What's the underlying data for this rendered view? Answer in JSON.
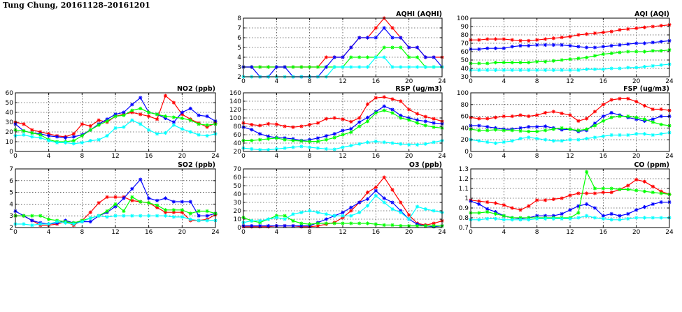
{
  "page": {
    "title": "Tung Chung, 20161128–20161201"
  },
  "colors": {
    "red": "#ff0000",
    "blue": "#0000ff",
    "green": "#00ff00",
    "cyan": "#00ffff"
  },
  "chart_data": [
    {
      "id": "aqhi",
      "type": "line",
      "title": "AQHI (AQHI)",
      "xlim": [
        0,
        24
      ],
      "xticks": [
        0,
        4,
        8,
        12,
        16,
        20,
        24
      ],
      "ylim": [
        2,
        8
      ],
      "yticks": [
        2,
        3,
        4,
        5,
        6,
        7,
        8
      ],
      "grid": true,
      "series": [
        {
          "color": "red",
          "values": [
            3,
            3,
            3,
            3,
            3,
            3,
            3,
            3,
            3,
            3,
            4,
            4,
            4,
            5,
            6,
            6,
            7,
            8,
            7,
            6,
            5,
            5,
            4,
            4,
            4
          ]
        },
        {
          "color": "green",
          "values": [
            3,
            3,
            3,
            3,
            3,
            3,
            3,
            3,
            3,
            3,
            3,
            3,
            3,
            4,
            4,
            4,
            4,
            5,
            5,
            5,
            4,
            4,
            3,
            3,
            3
          ]
        },
        {
          "color": "blue",
          "values": [
            3,
            3,
            2,
            2,
            3,
            3,
            2,
            2,
            2,
            2,
            3,
            4,
            4,
            5,
            6,
            6,
            6,
            7,
            6,
            6,
            5,
            5,
            4,
            4,
            3
          ]
        },
        {
          "color": "cyan",
          "values": [
            2,
            2,
            2,
            2,
            2,
            2,
            2,
            2,
            2,
            2,
            2,
            3,
            3,
            3,
            3,
            3,
            4,
            4,
            3,
            3,
            3,
            3,
            3,
            3,
            3
          ]
        }
      ]
    },
    {
      "id": "aqi",
      "type": "line",
      "title": "AQI (AQI)",
      "xlim": [
        0,
        24
      ],
      "xticks": [
        0,
        4,
        8,
        12,
        16,
        20,
        24
      ],
      "ylim": [
        30,
        100
      ],
      "yticks": [
        30,
        40,
        50,
        60,
        70,
        80,
        90,
        100
      ],
      "grid": true,
      "series": [
        {
          "color": "red",
          "values": [
            74,
            74,
            75,
            75,
            75,
            74,
            73,
            73,
            74,
            75,
            76,
            77,
            78,
            80,
            81,
            82,
            83,
            84,
            86,
            87,
            88,
            89,
            90,
            91,
            92
          ]
        },
        {
          "color": "blue",
          "values": [
            63,
            63,
            64,
            64,
            64,
            66,
            67,
            67,
            68,
            68,
            68,
            68,
            67,
            66,
            65,
            65,
            66,
            67,
            68,
            69,
            70,
            70,
            71,
            72,
            73
          ]
        },
        {
          "color": "green",
          "values": [
            46,
            46,
            46,
            47,
            47,
            47,
            47,
            47,
            48,
            48,
            49,
            50,
            51,
            52,
            53,
            55,
            57,
            58,
            59,
            60,
            60,
            60,
            61,
            61,
            62
          ]
        },
        {
          "color": "cyan",
          "values": [
            38,
            38,
            38,
            38,
            38,
            38,
            38,
            38,
            38,
            38,
            38,
            38,
            38,
            38,
            39,
            39,
            39,
            40,
            40,
            41,
            41,
            42,
            43,
            44,
            45
          ]
        }
      ]
    },
    {
      "id": "no2",
      "type": "line",
      "title": "NO2 (ppb)",
      "xlim": [
        0,
        24
      ],
      "xticks": [
        0,
        4,
        8,
        12,
        16,
        20,
        24
      ],
      "ylim": [
        0,
        60
      ],
      "yticks": [
        0,
        10,
        20,
        30,
        40,
        50,
        60
      ],
      "grid": true,
      "series": [
        {
          "color": "red",
          "values": [
            30,
            28,
            22,
            20,
            18,
            16,
            15,
            18,
            28,
            26,
            32,
            30,
            36,
            38,
            40,
            38,
            36,
            33,
            57,
            50,
            38,
            33,
            29,
            25,
            29
          ]
        },
        {
          "color": "blue",
          "values": [
            28,
            21,
            19,
            18,
            16,
            15,
            14,
            15,
            17,
            22,
            28,
            33,
            38,
            40,
            48,
            55,
            40,
            38,
            34,
            30,
            40,
            44,
            37,
            36,
            31
          ]
        },
        {
          "color": "green",
          "values": [
            22,
            21,
            19,
            17,
            12,
            10,
            10,
            11,
            16,
            22,
            27,
            31,
            36,
            37,
            42,
            44,
            40,
            38,
            36,
            35,
            34,
            32,
            28,
            27,
            28
          ]
        },
        {
          "color": "cyan",
          "values": [
            16,
            17,
            15,
            14,
            11,
            9,
            9,
            8,
            9,
            11,
            12,
            16,
            24,
            25,
            32,
            28,
            22,
            18,
            19,
            27,
            23,
            20,
            17,
            16,
            18
          ]
        }
      ]
    },
    {
      "id": "rsp",
      "type": "line",
      "title": "RSP (ug/m3)",
      "xlim": [
        0,
        24
      ],
      "xticks": [
        0,
        4,
        8,
        12,
        16,
        20,
        24
      ],
      "ylim": [
        20,
        160
      ],
      "yticks": [
        20,
        40,
        60,
        80,
        100,
        120,
        140,
        160
      ],
      "grid": true,
      "series": [
        {
          "color": "red",
          "values": [
            88,
            84,
            82,
            86,
            85,
            80,
            78,
            80,
            84,
            88,
            98,
            100,
            97,
            91,
            100,
            133,
            148,
            150,
            145,
            140,
            120,
            110,
            103,
            98,
            92
          ]
        },
        {
          "color": "blue",
          "values": [
            78,
            72,
            62,
            56,
            53,
            52,
            50,
            46,
            48,
            52,
            57,
            62,
            70,
            74,
            90,
            101,
            115,
            128,
            120,
            106,
            100,
            95,
            92,
            88,
            86
          ]
        },
        {
          "color": "green",
          "values": [
            46,
            46,
            48,
            50,
            52,
            48,
            46,
            45,
            44,
            44,
            48,
            53,
            60,
            66,
            80,
            92,
            112,
            118,
            112,
            100,
            95,
            88,
            82,
            78,
            76
          ]
        },
        {
          "color": "cyan",
          "values": [
            28,
            26,
            24,
            24,
            26,
            28,
            30,
            32,
            30,
            28,
            26,
            25,
            30,
            34,
            38,
            42,
            44,
            42,
            40,
            38,
            36,
            36,
            38,
            42,
            46
          ]
        }
      ]
    },
    {
      "id": "fsp",
      "type": "line",
      "title": "FSP (ug/m3)",
      "xlim": [
        0,
        24
      ],
      "xticks": [
        0,
        4,
        8,
        12,
        16,
        20,
        24
      ],
      "ylim": [
        0,
        100
      ],
      "yticks": [
        0,
        20,
        40,
        60,
        80,
        100
      ],
      "grid": true,
      "series": [
        {
          "color": "red",
          "values": [
            58,
            56,
            56,
            58,
            60,
            60,
            62,
            60,
            62,
            66,
            68,
            65,
            62,
            52,
            56,
            68,
            80,
            88,
            90,
            90,
            85,
            78,
            72,
            72,
            70
          ]
        },
        {
          "color": "blue",
          "values": [
            44,
            44,
            42,
            40,
            38,
            38,
            40,
            42,
            42,
            43,
            40,
            37,
            38,
            34,
            36,
            48,
            60,
            66,
            62,
            58,
            55,
            52,
            55,
            60,
            60
          ]
        },
        {
          "color": "green",
          "values": [
            38,
            36,
            36,
            37,
            36,
            36,
            35,
            34,
            34,
            36,
            38,
            40,
            38,
            36,
            38,
            44,
            52,
            58,
            60,
            60,
            58,
            55,
            50,
            46,
            44
          ]
        },
        {
          "color": "cyan",
          "values": [
            20,
            18,
            16,
            14,
            16,
            18,
            22,
            24,
            22,
            20,
            18,
            18,
            20,
            20,
            22,
            24,
            26,
            28,
            28,
            28,
            30,
            30,
            28,
            30,
            32
          ]
        }
      ]
    },
    {
      "id": "so2",
      "type": "line",
      "title": "SO2 (ppb)",
      "xlim": [
        0,
        24
      ],
      "xticks": [
        0,
        4,
        8,
        12,
        16,
        20,
        24
      ],
      "ylim": [
        2,
        7
      ],
      "yticks": [
        2,
        3,
        4,
        5,
        6,
        7
      ],
      "grid": true,
      "series": [
        {
          "color": "red",
          "values": [
            3.0,
            3.0,
            2.6,
            2.2,
            2.2,
            2.3,
            2.5,
            2.2,
            2.6,
            3.3,
            4.1,
            4.6,
            4.6,
            4.6,
            4.3,
            4.2,
            4.1,
            3.7,
            3.3,
            3.3,
            3.3,
            2.6,
            2.6,
            2.7,
            3.1
          ]
        },
        {
          "color": "blue",
          "values": [
            3.4,
            3.0,
            2.6,
            2.4,
            2.3,
            2.4,
            2.6,
            2.4,
            2.5,
            2.5,
            3.0,
            3.3,
            3.8,
            4.5,
            5.3,
            6.1,
            4.5,
            4.3,
            4.5,
            4.2,
            4.2,
            4.2,
            3.0,
            3.0,
            3.2
          ]
        },
        {
          "color": "green",
          "values": [
            3.0,
            3.0,
            3.0,
            3.0,
            2.7,
            2.6,
            2.5,
            2.4,
            2.6,
            2.8,
            3.0,
            3.4,
            4.0,
            3.4,
            4.6,
            4.2,
            4.1,
            3.9,
            3.5,
            3.5,
            3.5,
            3.2,
            3.4,
            3.4,
            3.2
          ]
        },
        {
          "color": "cyan",
          "values": [
            2.3,
            2.3,
            2.2,
            2.3,
            2.3,
            2.5,
            2.4,
            2.3,
            2.5,
            2.8,
            3.0,
            2.9,
            3.0,
            3.0,
            3.0,
            3.0,
            3.0,
            3.0,
            3.0,
            2.9,
            2.9,
            2.7,
            2.6,
            2.6,
            2.6
          ]
        }
      ]
    },
    {
      "id": "o3",
      "type": "line",
      "title": "O3 (ppb)",
      "xlim": [
        0,
        24
      ],
      "xticks": [
        0,
        4,
        8,
        12,
        16,
        20,
        24
      ],
      "ylim": [
        0,
        70
      ],
      "yticks": [
        0,
        10,
        20,
        30,
        40,
        50,
        60,
        70
      ],
      "grid": true,
      "series": [
        {
          "color": "red",
          "values": [
            1,
            1,
            1,
            1,
            2,
            2,
            2,
            1,
            1,
            2,
            4,
            6,
            12,
            20,
            30,
            42,
            48,
            60,
            45,
            30,
            15,
            5,
            3,
            5,
            8
          ]
        },
        {
          "color": "blue",
          "values": [
            2,
            2,
            2,
            2,
            2,
            2,
            2,
            2,
            2,
            6,
            10,
            14,
            18,
            24,
            30,
            34,
            44,
            35,
            30,
            20,
            10,
            4,
            2,
            1,
            2
          ]
        },
        {
          "color": "green",
          "values": [
            12,
            8,
            6,
            10,
            14,
            14,
            8,
            5,
            4,
            5,
            5,
            5,
            5,
            5,
            5,
            5,
            4,
            3,
            3,
            2,
            2,
            2,
            2,
            2,
            2
          ]
        },
        {
          "color": "cyan",
          "values": [
            6,
            8,
            8,
            10,
            12,
            10,
            16,
            18,
            20,
            18,
            16,
            14,
            14,
            14,
            18,
            26,
            38,
            30,
            22,
            18,
            10,
            25,
            22,
            20,
            18
          ]
        }
      ]
    },
    {
      "id": "co",
      "type": "line",
      "title": "CO (ppm)",
      "xlim": [
        0,
        24
      ],
      "xticks": [
        0,
        4,
        8,
        12,
        16,
        20,
        24
      ],
      "ylim": [
        0.7,
        1.3
      ],
      "yticks": [
        0.7,
        0.8,
        0.9,
        1.0,
        1.1,
        1.2,
        1.3
      ],
      "grid": true,
      "series": [
        {
          "color": "red",
          "values": [
            0.98,
            0.97,
            0.96,
            0.95,
            0.93,
            0.9,
            0.88,
            0.92,
            0.98,
            0.98,
            0.99,
            1.0,
            1.03,
            1.05,
            1.05,
            1.05,
            1.06,
            1.06,
            1.09,
            1.13,
            1.19,
            1.17,
            1.12,
            1.07,
            1.04
          ]
        },
        {
          "color": "blue",
          "values": [
            0.97,
            0.94,
            0.89,
            0.86,
            0.82,
            0.8,
            0.79,
            0.8,
            0.82,
            0.82,
            0.82,
            0.84,
            0.88,
            0.92,
            0.94,
            0.9,
            0.82,
            0.84,
            0.82,
            0.84,
            0.88,
            0.91,
            0.94,
            0.96,
            0.96
          ]
        },
        {
          "color": "green",
          "values": [
            0.85,
            0.85,
            0.86,
            0.84,
            0.82,
            0.8,
            0.8,
            0.8,
            0.8,
            0.8,
            0.8,
            0.8,
            0.8,
            0.85,
            1.27,
            1.1,
            1.1,
            1.1,
            1.09,
            1.09,
            1.08,
            1.07,
            1.06,
            1.05,
            1.04
          ]
        },
        {
          "color": "cyan",
          "values": [
            0.78,
            0.78,
            0.79,
            0.79,
            0.78,
            0.78,
            0.78,
            0.78,
            0.79,
            0.79,
            0.79,
            0.79,
            0.79,
            0.8,
            0.82,
            0.8,
            0.79,
            0.78,
            0.78,
            0.79,
            0.8,
            0.8,
            0.8,
            0.8,
            0.8
          ]
        }
      ]
    }
  ]
}
